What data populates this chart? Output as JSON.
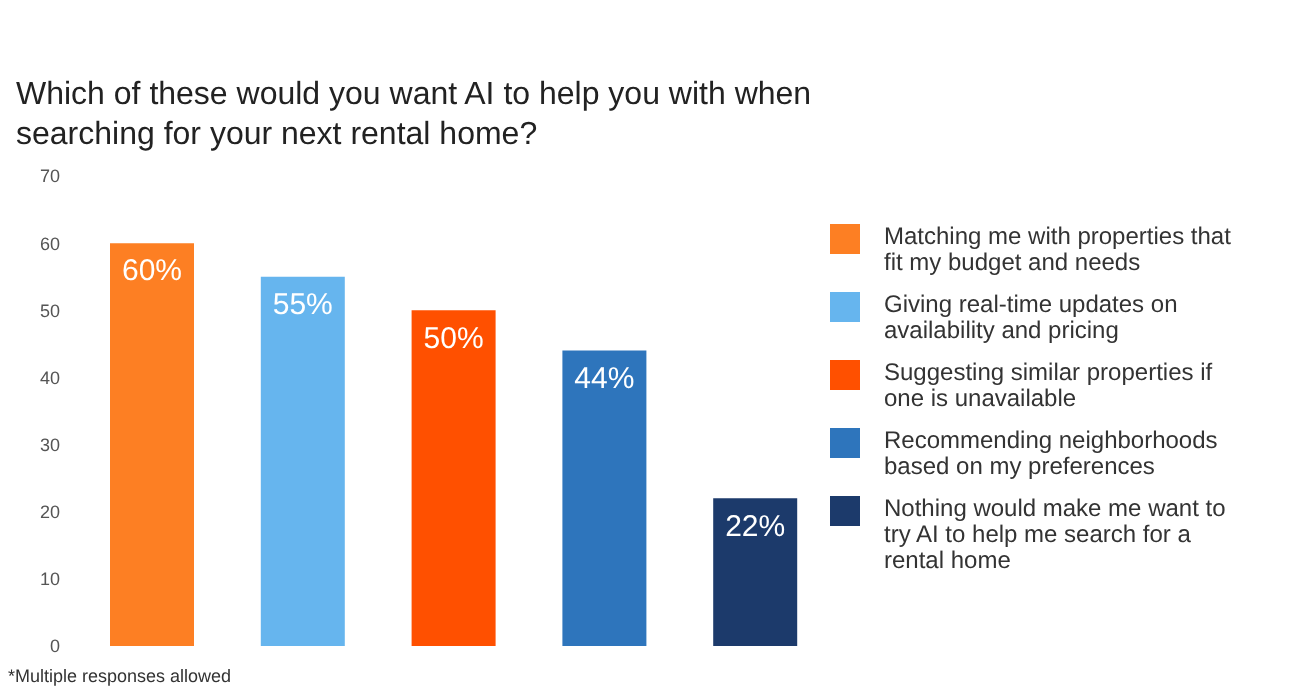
{
  "chart_data": {
    "type": "bar",
    "title": "Which of these would you want AI to help you with when searching for your next rental home?",
    "categories": [
      null,
      null,
      null,
      null,
      null
    ],
    "stacked": true,
    "series": [
      {
        "name": "Matching me with properties that fit my budget and needs",
        "color": "#fd7f23",
        "values": [
          60,
          null,
          null,
          null,
          null
        ],
        "value_labels": [
          "60%",
          null,
          null,
          null,
          null
        ]
      },
      {
        "name": "Giving real-time updates on availability and pricing",
        "color": "#66b5ee",
        "values": [
          null,
          55,
          null,
          null,
          null
        ],
        "value_labels": [
          null,
          "55%",
          null,
          null,
          null
        ]
      },
      {
        "name": "Suggesting similar properties if one is unavailable",
        "color": "#ff5000",
        "values": [
          null,
          null,
          50,
          null,
          null
        ],
        "value_labels": [
          null,
          null,
          "50%",
          null,
          null
        ]
      },
      {
        "name": "Recommending neighborhoods based on my preferences",
        "color": "#2e75bc",
        "values": [
          null,
          null,
          null,
          44,
          null
        ],
        "value_labels": [
          null,
          null,
          null,
          "44%",
          null
        ]
      },
      {
        "name": "Nothing would make me want to try AI to help me search for a rental home",
        "color": "#1c3a6b",
        "values": [
          null,
          null,
          null,
          null,
          22
        ],
        "value_labels": [
          null,
          null,
          null,
          null,
          "22%"
        ]
      }
    ],
    "ylim": [
      0,
      70
    ],
    "yticks": [
      0,
      10,
      20,
      30,
      40,
      50,
      60,
      70
    ],
    "grid": false,
    "legend": "right",
    "tick_labels": "y",
    "annotations": [
      "*Multiple responses allowed"
    ]
  }
}
